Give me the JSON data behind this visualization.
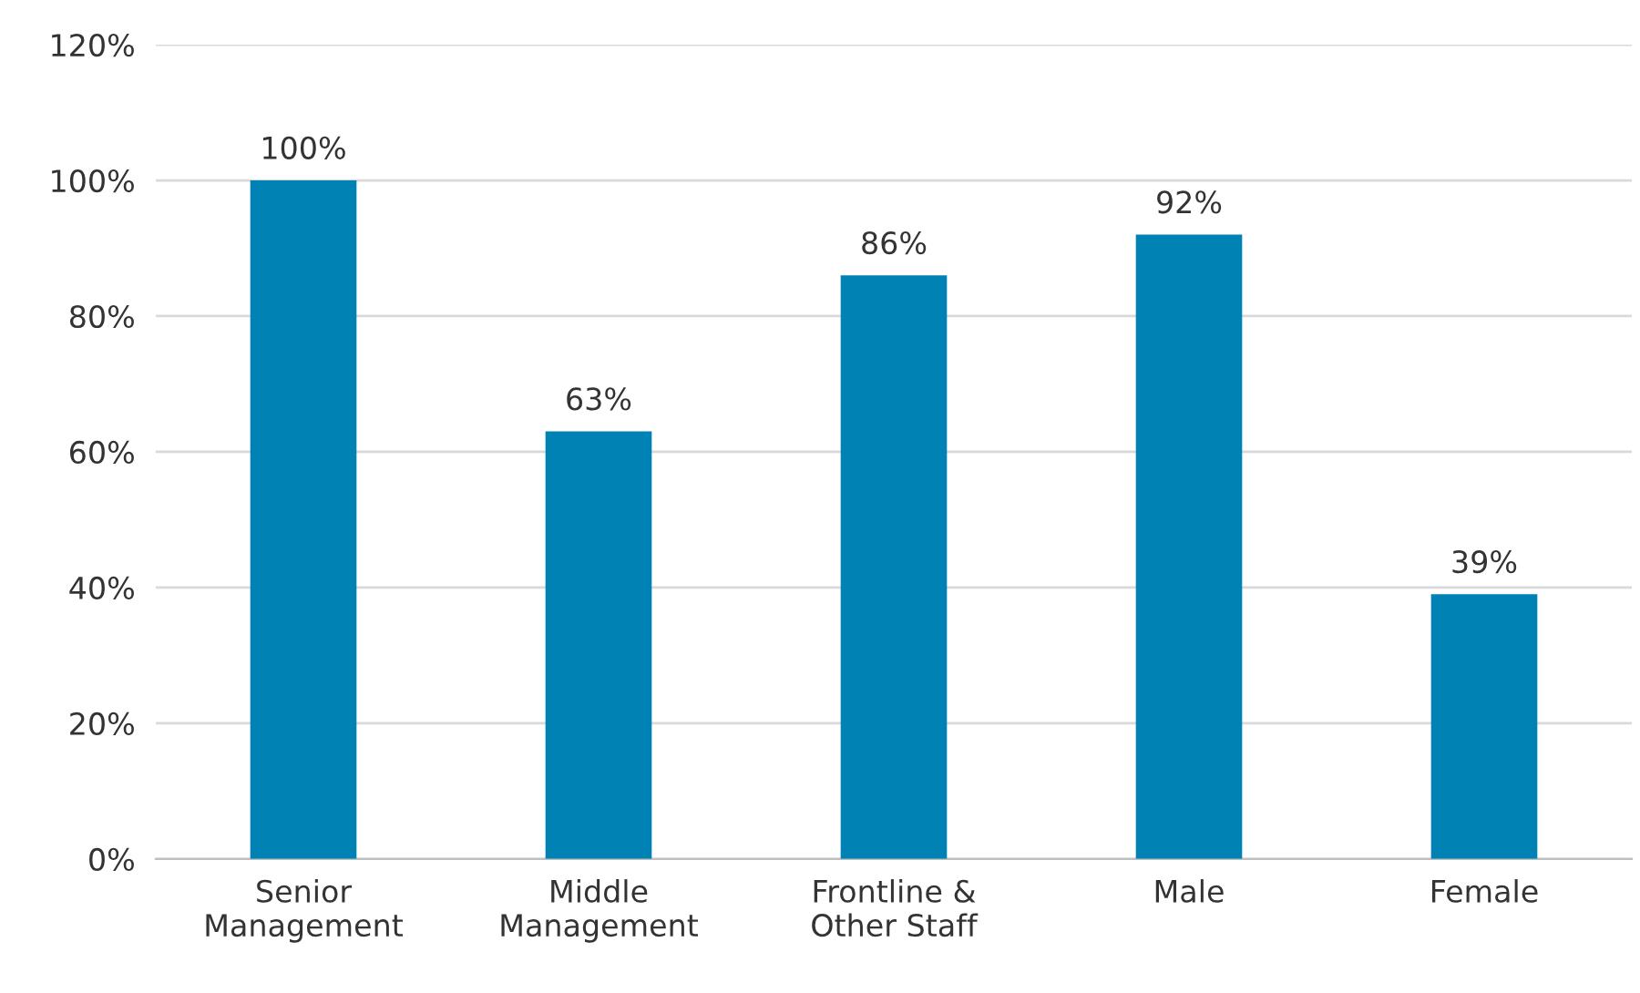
{
  "chart_data": {
    "type": "bar",
    "categories": [
      "Senior\nManagement",
      "Middle\nManagement",
      "Frontline &\nOther Staff",
      "Male",
      "Female"
    ],
    "values": [
      100,
      63,
      86,
      92,
      39
    ],
    "value_labels": [
      "100%",
      "63%",
      "86%",
      "92%",
      "39%"
    ],
    "color": "#0082b4",
    "ylim": [
      0,
      120
    ],
    "yticks": [
      {
        "value": 0,
        "label": "0%"
      },
      {
        "value": 20,
        "label": "20%"
      },
      {
        "value": 40,
        "label": "40%"
      },
      {
        "value": 60,
        "label": "60%"
      },
      {
        "value": 80,
        "label": "80%"
      },
      {
        "value": 100,
        "label": "100%"
      },
      {
        "value": 120,
        "label": "120%"
      }
    ],
    "grid": "y",
    "legend": false
  }
}
